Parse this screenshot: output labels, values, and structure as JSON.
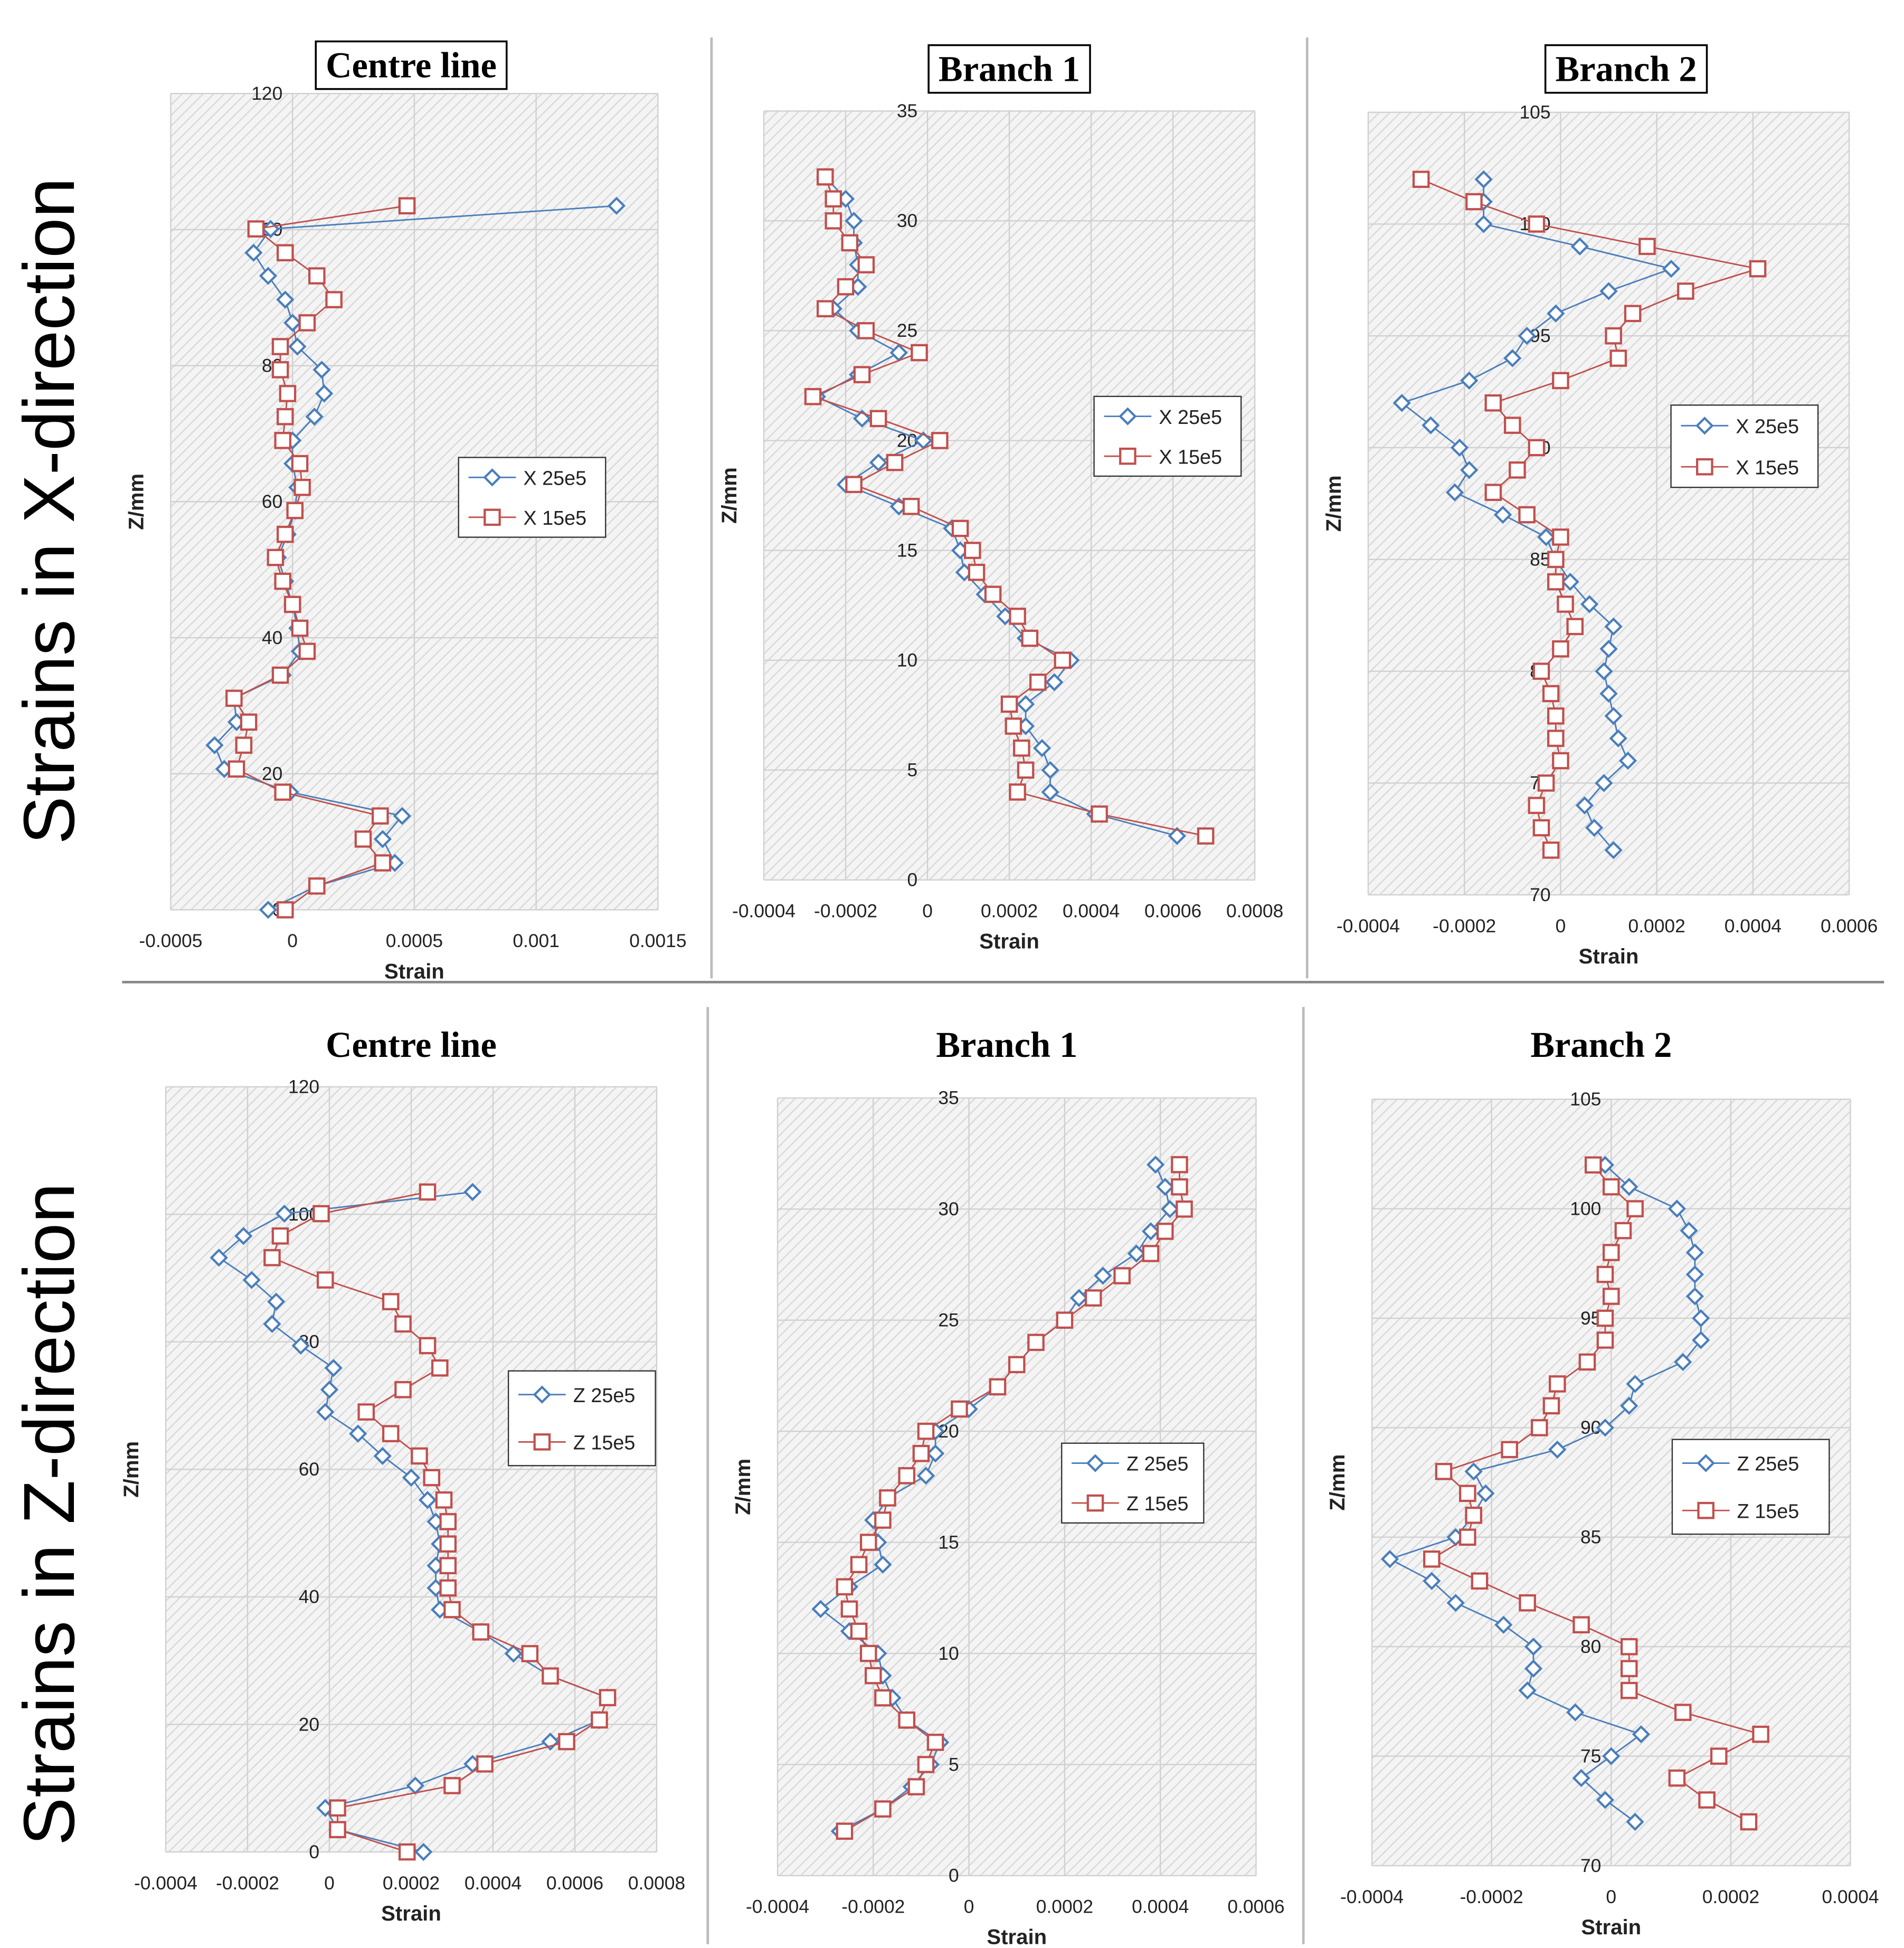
{
  "row_labels": [
    "Strains in X-direction",
    "Strains in Z-direction"
  ],
  "chart_data": [
    {
      "type": "line",
      "title": "Centre line",
      "title_frame": true,
      "xlabel": "Strain",
      "ylabel": "Z/mm",
      "xlim": [
        -0.0005,
        0.0015
      ],
      "xticks": [
        -0.0005,
        0,
        0.0005,
        0.001,
        0.0015
      ],
      "ylim": [
        0,
        120
      ],
      "yticks": [
        0,
        20,
        40,
        60,
        80,
        100,
        120
      ],
      "grid": true,
      "legend": "right",
      "series": [
        {
          "name": "X 25e5",
          "color": "#4a7ebb",
          "marker": "diamond",
          "x": [
            0.00133,
            -9e-05,
            -0.00016,
            -0.0001,
            -3e-05,
            0,
            2e-05,
            0.00012,
            0.00013,
            9e-05,
            0,
            0,
            2e-05,
            1e-05,
            -2e-05,
            -6e-05,
            -3e-05,
            0,
            2e-05,
            3e-05,
            -4e-05,
            -0.00024,
            -0.00023,
            -0.00032,
            -0.00028,
            -1e-05,
            0.00045,
            0.00037,
            0.00042,
            0.0001,
            -0.0001
          ],
          "values": [
            103.5,
            100.1,
            96.6,
            93.2,
            89.7,
            86.3,
            82.8,
            79.4,
            75.9,
            72.5,
            69,
            65.6,
            62.1,
            58.7,
            55.2,
            51.8,
            48.3,
            44.9,
            41.4,
            38,
            34.5,
            31.1,
            27.6,
            24.2,
            20.7,
            17.3,
            13.8,
            10.4,
            6.9,
            3.5,
            0
          ]
        },
        {
          "name": "X 15e5",
          "color": "#c0504d",
          "marker": "square",
          "x": [
            0.00047,
            -0.00015,
            -3e-05,
            0.0001,
            0.00017,
            6e-05,
            -5e-05,
            -5e-05,
            -2e-05,
            -3e-05,
            -4e-05,
            3e-05,
            4e-05,
            1e-05,
            -3e-05,
            -7e-05,
            -4e-05,
            0,
            3e-05,
            6e-05,
            -5e-05,
            -0.00024,
            -0.00018,
            -0.0002,
            -0.00023,
            -4e-05,
            0.00036,
            0.00029,
            0.00037,
            0.0001,
            -3e-05
          ],
          "values": [
            103.5,
            100.1,
            96.6,
            93.2,
            89.7,
            86.3,
            82.8,
            79.4,
            75.9,
            72.5,
            69,
            65.6,
            62.1,
            58.7,
            55.2,
            51.8,
            48.3,
            44.9,
            41.4,
            38,
            34.5,
            31.1,
            27.6,
            24.2,
            20.7,
            17.3,
            13.8,
            10.4,
            6.9,
            3.5,
            0
          ]
        }
      ]
    },
    {
      "type": "line",
      "title": "Branch 1",
      "title_frame": true,
      "xlabel": "Strain",
      "ylabel": "Z/mm",
      "xlim": [
        -0.0004,
        0.0008
      ],
      "xticks": [
        -0.0004,
        -0.0002,
        0,
        0.0002,
        0.0004,
        0.0006,
        0.0008
      ],
      "ylim": [
        0,
        35
      ],
      "yticks": [
        0,
        5,
        10,
        15,
        20,
        25,
        30,
        35
      ],
      "grid": true,
      "legend": "right",
      "series": [
        {
          "name": "X 25e5",
          "color": "#4a7ebb",
          "marker": "diamond",
          "x": [
            -0.00025,
            -0.0002,
            -0.00018,
            -0.00018,
            -0.00017,
            -0.00017,
            -0.00023,
            -0.00017,
            -7e-05,
            -0.00017,
            -0.00027,
            -0.00016,
            -1e-05,
            -0.00012,
            -0.0002,
            -7e-05,
            6e-05,
            8e-05,
            9e-05,
            0.00014,
            0.00019,
            0.00024,
            0.00035,
            0.00031,
            0.00024,
            0.00024,
            0.00028,
            0.0003,
            0.0003,
            0.00041,
            0.00061
          ],
          "values": [
            32,
            31,
            30,
            29,
            28,
            27,
            26,
            25,
            24,
            23,
            22,
            21,
            20,
            19,
            18,
            17,
            16,
            15,
            14,
            13,
            12,
            11,
            10,
            9,
            8,
            7,
            6,
            5,
            4,
            3,
            2
          ]
        },
        {
          "name": "X 15e5",
          "color": "#c0504d",
          "marker": "square",
          "x": [
            -0.00025,
            -0.00023,
            -0.00023,
            -0.00019,
            -0.00015,
            -0.0002,
            -0.00025,
            -0.00015,
            -2e-05,
            -0.00016,
            -0.00028,
            -0.00012,
            3e-05,
            -8e-05,
            -0.00018,
            -4e-05,
            8e-05,
            0.00011,
            0.00012,
            0.00016,
            0.00022,
            0.00025,
            0.00033,
            0.00027,
            0.0002,
            0.00021,
            0.00023,
            0.00024,
            0.00022,
            0.00042,
            0.00068
          ],
          "values": [
            32,
            31,
            30,
            29,
            28,
            27,
            26,
            25,
            24,
            23,
            22,
            21,
            20,
            19,
            18,
            17,
            16,
            15,
            14,
            13,
            12,
            11,
            10,
            9,
            8,
            7,
            6,
            5,
            4,
            3,
            2
          ]
        }
      ]
    },
    {
      "type": "line",
      "title": "Branch 2",
      "title_frame": true,
      "xlabel": "Strain",
      "ylabel": "Z/mm",
      "xlim": [
        -0.0004,
        0.0006
      ],
      "xticks": [
        -0.0004,
        -0.0002,
        0,
        0.0002,
        0.0004,
        0.0006
      ],
      "ylim": [
        70,
        105
      ],
      "yticks": [
        70,
        75,
        80,
        85,
        90,
        95,
        100,
        105
      ],
      "grid": true,
      "legend": "right",
      "series": [
        {
          "name": "X 25e5",
          "color": "#4a7ebb",
          "marker": "diamond",
          "x": [
            -0.00016,
            -0.00016,
            -0.00016,
            4e-05,
            0.00023,
            0.0001,
            -1e-05,
            -7e-05,
            -0.0001,
            -0.00019,
            -0.00033,
            -0.00027,
            -0.00021,
            -0.00019,
            -0.00022,
            -0.00012,
            -3e-05,
            -1e-05,
            2e-05,
            6e-05,
            0.00011,
            0.0001,
            9e-05,
            0.0001,
            0.00011,
            0.00012,
            0.00014,
            9e-05,
            5e-05,
            7e-05,
            0.00011
          ],
          "values": [
            102,
            101,
            100,
            99,
            98,
            97,
            96,
            95,
            94,
            93,
            92,
            91,
            90,
            89,
            88,
            87,
            86,
            85,
            84,
            83,
            82,
            81,
            80,
            79,
            78,
            77,
            76,
            75,
            74,
            73,
            72
          ]
        },
        {
          "name": "X 15e5",
          "color": "#c0504d",
          "marker": "square",
          "x": [
            -0.00029,
            -0.00018,
            -5e-05,
            0.00018,
            0.00041,
            0.00026,
            0.00015,
            0.00011,
            0.00012,
            0,
            -0.00014,
            -0.0001,
            -5e-05,
            -9e-05,
            -0.00014,
            -7e-05,
            0,
            -1e-05,
            -1e-05,
            1e-05,
            3e-05,
            0,
            -4e-05,
            -2e-05,
            -1e-05,
            -1e-05,
            0,
            -3e-05,
            -5e-05,
            -4e-05,
            -2e-05
          ],
          "values": [
            102,
            101,
            100,
            99,
            98,
            97,
            96,
            95,
            94,
            93,
            92,
            91,
            90,
            89,
            88,
            87,
            86,
            85,
            84,
            83,
            82,
            81,
            80,
            79,
            78,
            77,
            76,
            75,
            74,
            73,
            72
          ]
        }
      ]
    },
    {
      "type": "line",
      "title": "Centre line",
      "title_frame": false,
      "xlabel": "Strain",
      "ylabel": "Z/mm",
      "xlim": [
        -0.0004,
        0.0008
      ],
      "xticks": [
        -0.0004,
        -0.0002,
        0,
        0.0002,
        0.0004,
        0.0006,
        0.0008
      ],
      "ylim": [
        0,
        120
      ],
      "yticks": [
        0,
        20,
        40,
        60,
        80,
        100,
        120
      ],
      "grid": true,
      "legend": "right",
      "series": [
        {
          "name": "Z 25e5",
          "color": "#4a7ebb",
          "marker": "diamond",
          "x": [
            0.00035,
            -0.00011,
            -0.00021,
            -0.00027,
            -0.00019,
            -0.00013,
            -0.00014,
            -7e-05,
            1e-05,
            0,
            -1e-05,
            7e-05,
            0.00013,
            0.0002,
            0.00024,
            0.00026,
            0.00027,
            0.00026,
            0.00026,
            0.00027,
            0.00037,
            0.00045,
            0.00054,
            0.00068,
            0.00066,
            0.00054,
            0.00035,
            0.00021,
            -1e-05,
            2e-05,
            0.00023
          ],
          "values": [
            103.5,
            100.1,
            96.6,
            93.2,
            89.7,
            86.3,
            82.8,
            79.4,
            75.9,
            72.5,
            69,
            65.6,
            62.1,
            58.7,
            55.2,
            51.8,
            48.3,
            44.9,
            41.4,
            38,
            34.5,
            31.1,
            27.6,
            24.2,
            20.7,
            17.3,
            13.8,
            10.4,
            6.9,
            3.5,
            0
          ]
        },
        {
          "name": "Z 15e5",
          "color": "#c0504d",
          "marker": "square",
          "x": [
            0.00024,
            -2e-05,
            -0.00012,
            -0.00014,
            -1e-05,
            0.00015,
            0.00018,
            0.00024,
            0.00027,
            0.00018,
            9e-05,
            0.00015,
            0.00022,
            0.00025,
            0.00028,
            0.00029,
            0.00029,
            0.00029,
            0.00029,
            0.0003,
            0.00037,
            0.00049,
            0.00054,
            0.00068,
            0.00066,
            0.00058,
            0.00038,
            0.0003,
            2e-05,
            2e-05,
            0.00019
          ],
          "values": [
            103.5,
            100.1,
            96.6,
            93.2,
            89.7,
            86.3,
            82.8,
            79.4,
            75.9,
            72.5,
            69,
            65.6,
            62.1,
            58.7,
            55.2,
            51.8,
            48.3,
            44.9,
            41.4,
            38,
            34.5,
            31.1,
            27.6,
            24.2,
            20.7,
            17.3,
            13.8,
            10.4,
            6.9,
            3.5,
            0
          ]
        }
      ]
    },
    {
      "type": "line",
      "title": "Branch 1",
      "title_frame": false,
      "xlabel": "Strain",
      "ylabel": "Z/mm",
      "xlim": [
        -0.0004,
        0.0006
      ],
      "xticks": [
        -0.0004,
        -0.0002,
        0,
        0.0002,
        0.0004,
        0.0006
      ],
      "ylim": [
        0,
        35
      ],
      "yticks": [
        0,
        5,
        10,
        15,
        20,
        25,
        30,
        35
      ],
      "grid": true,
      "legend": "right",
      "series": [
        {
          "name": "Z 25e5",
          "color": "#4a7ebb",
          "marker": "diamond",
          "x": [
            0.00039,
            0.00041,
            0.00042,
            0.00038,
            0.00035,
            0.00028,
            0.00023,
            0.0002,
            0.00014,
            0.0001,
            6e-05,
            0,
            -7e-05,
            -7e-05,
            -9e-05,
            -0.00017,
            -0.0002,
            -0.00019,
            -0.00018,
            -0.00025,
            -0.00031,
            -0.00025,
            -0.00019,
            -0.00018,
            -0.00016,
            -0.00013,
            -6e-05,
            -8e-05,
            -0.00012,
            -0.00018,
            -0.00027
          ],
          "values": [
            32,
            31,
            30,
            29,
            28,
            27,
            26,
            25,
            24,
            23,
            22,
            21,
            20,
            19,
            18,
            17,
            16,
            15,
            14,
            13,
            12,
            11,
            10,
            9,
            8,
            7,
            6,
            5,
            4,
            3,
            2
          ]
        },
        {
          "name": "Z 15e5",
          "color": "#c0504d",
          "marker": "square",
          "x": [
            0.00044,
            0.00044,
            0.00045,
            0.00041,
            0.00038,
            0.00032,
            0.00026,
            0.0002,
            0.00014,
            0.0001,
            6e-05,
            -2e-05,
            -9e-05,
            -0.0001,
            -0.00013,
            -0.00017,
            -0.00018,
            -0.00021,
            -0.00023,
            -0.00026,
            -0.00025,
            -0.00023,
            -0.00021,
            -0.0002,
            -0.00018,
            -0.00013,
            -7e-05,
            -9e-05,
            -0.00011,
            -0.00018,
            -0.00026
          ],
          "values": [
            32,
            31,
            30,
            29,
            28,
            27,
            26,
            25,
            24,
            23,
            22,
            21,
            20,
            19,
            18,
            17,
            16,
            15,
            14,
            13,
            12,
            11,
            10,
            9,
            8,
            7,
            6,
            5,
            4,
            3,
            2
          ]
        }
      ]
    },
    {
      "type": "line",
      "title": "Branch 2",
      "title_frame": false,
      "xlabel": "Strain",
      "ylabel": "Z/mm",
      "xlim": [
        -0.0004,
        0.0004
      ],
      "xticks": [
        -0.0004,
        -0.0002,
        0,
        0.0002,
        0.0004
      ],
      "ylim": [
        70,
        105
      ],
      "yticks": [
        70,
        75,
        80,
        85,
        90,
        95,
        100,
        105
      ],
      "grid": true,
      "legend": "right",
      "series": [
        {
          "name": "Z 25e5",
          "color": "#4a7ebb",
          "marker": "diamond",
          "x": [
            -1e-05,
            3e-05,
            0.00011,
            0.00013,
            0.00014,
            0.00014,
            0.00014,
            0.00015,
            0.00015,
            0.00012,
            4e-05,
            3e-05,
            -1e-05,
            -9e-05,
            -0.00023,
            -0.00021,
            -0.00023,
            -0.00026,
            -0.00037,
            -0.0003,
            -0.00026,
            -0.00018,
            -0.00013,
            -0.00013,
            -0.00014,
            -6e-05,
            5e-05,
            0,
            -5e-05,
            -1e-05,
            4e-05
          ],
          "values": [
            102,
            101,
            100,
            99,
            98,
            97,
            96,
            95,
            94,
            93,
            92,
            91,
            90,
            89,
            88,
            87,
            86,
            85,
            84,
            83,
            82,
            81,
            80,
            79,
            78,
            77,
            76,
            75,
            74,
            73,
            72
          ]
        },
        {
          "name": "Z 15e5",
          "color": "#c0504d",
          "marker": "square",
          "x": [
            -3e-05,
            0,
            4e-05,
            2e-05,
            0,
            -1e-05,
            0,
            -1e-05,
            -1e-05,
            -4e-05,
            -9e-05,
            -0.0001,
            -0.00012,
            -0.00017,
            -0.00028,
            -0.00024,
            -0.00023,
            -0.00024,
            -0.0003,
            -0.00022,
            -0.00014,
            -5e-05,
            3e-05,
            3e-05,
            3e-05,
            0.00012,
            0.00025,
            0.00018,
            0.00011,
            0.00016,
            0.00023
          ],
          "values": [
            102,
            101,
            100,
            99,
            98,
            97,
            96,
            95,
            94,
            93,
            92,
            91,
            90,
            89,
            88,
            87,
            86,
            85,
            84,
            83,
            82,
            81,
            80,
            79,
            78,
            77,
            76,
            75,
            74,
            73,
            72
          ]
        }
      ]
    }
  ]
}
